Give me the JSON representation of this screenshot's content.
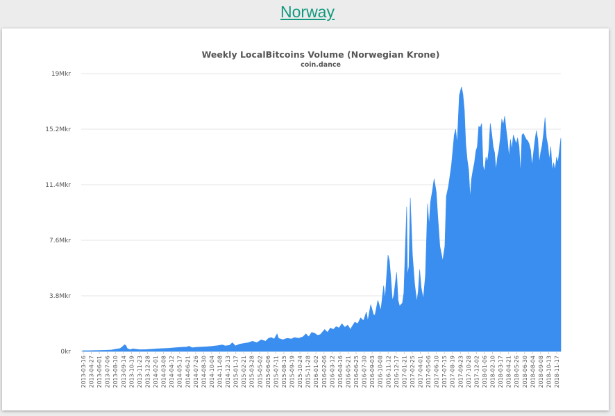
{
  "page": {
    "heading": "Norway"
  },
  "chart_data": {
    "type": "area",
    "title": "Weekly LocalBitcoins Volume (Norwegian Krone)",
    "subtitle": "coin.dance",
    "xlabel": "",
    "ylabel": "",
    "ylim": [
      0,
      19000000
    ],
    "grid": true,
    "legend": "none",
    "color": "#3a8eef",
    "y_tick_labels": [
      "0kr",
      "3.8Mkr",
      "7.6Mkr",
      "11.4Mkr",
      "15.2Mkr",
      "19Mkr"
    ],
    "y_tick_values": [
      0,
      3800000,
      7600000,
      11400000,
      15200000,
      19000000
    ],
    "x_tick_labels": [
      "2013-03-16",
      "2013-04-27",
      "2013-06-01",
      "2013-07-06",
      "2013-08-10",
      "2013-09-14",
      "2013-10-19",
      "2013-11-23",
      "2013-12-28",
      "2014-02-01",
      "2014-03-08",
      "2014-04-12",
      "2014-05-17",
      "2014-06-21",
      "2014-07-26",
      "2014-08-30",
      "2014-10-04",
      "2014-11-08",
      "2014-12-13",
      "2015-01-17",
      "2015-02-21",
      "2015-03-28",
      "2015-05-02",
      "2015-06-06",
      "2015-07-11",
      "2015-08-15",
      "2015-09-19",
      "2015-10-24",
      "2015-11-28",
      "2016-01-02",
      "2016-02-06",
      "2016-03-12",
      "2016-04-16",
      "2016-05-21",
      "2016-06-25",
      "2016-07-30",
      "2016-09-03",
      "2016-10-08",
      "2016-11-12",
      "2016-12-17",
      "2017-01-21",
      "2017-02-25",
      "2017-04-01",
      "2017-05-06",
      "2017-06-10",
      "2017-07-15",
      "2017-08-19",
      "2017-09-23",
      "2017-10-28",
      "2017-12-02",
      "2018-01-06",
      "2018-02-10",
      "2018-03-17",
      "2018-04-21",
      "2018-05-26",
      "2018-06-30",
      "2018-08-04",
      "2018-09-08",
      "2018-10-13",
      "2018-11-17"
    ],
    "series": [
      {
        "values": [
          [
            0,
            0.05
          ],
          [
            8,
            0.05
          ],
          [
            16,
            0.06
          ],
          [
            24,
            0.07
          ],
          [
            32,
            0.08
          ],
          [
            40,
            0.1
          ],
          [
            46,
            0.15
          ],
          [
            52,
            0.2
          ],
          [
            56,
            0.35
          ],
          [
            58,
            0.45
          ],
          [
            60,
            0.42
          ],
          [
            62,
            0.2
          ],
          [
            66,
            0.12
          ],
          [
            70,
            0.18
          ],
          [
            74,
            0.15
          ],
          [
            80,
            0.12
          ],
          [
            88,
            0.13
          ],
          [
            96,
            0.15
          ],
          [
            104,
            0.18
          ],
          [
            112,
            0.2
          ],
          [
            120,
            0.22
          ],
          [
            128,
            0.25
          ],
          [
            136,
            0.28
          ],
          [
            144,
            0.3
          ],
          [
            148,
            0.35
          ],
          [
            152,
            0.25
          ],
          [
            158,
            0.28
          ],
          [
            164,
            0.3
          ],
          [
            172,
            0.32
          ],
          [
            180,
            0.35
          ],
          [
            188,
            0.4
          ],
          [
            194,
            0.45
          ],
          [
            198,
            0.38
          ],
          [
            204,
            0.42
          ],
          [
            208,
            0.6
          ],
          [
            212,
            0.38
          ],
          [
            218,
            0.5
          ],
          [
            224,
            0.55
          ],
          [
            230,
            0.6
          ],
          [
            236,
            0.7
          ],
          [
            242,
            0.6
          ],
          [
            248,
            0.8
          ],
          [
            254,
            0.7
          ],
          [
            258,
            0.9
          ],
          [
            262,
            0.95
          ],
          [
            266,
            0.85
          ],
          [
            270,
            1.2
          ],
          [
            272,
            0.9
          ],
          [
            278,
            0.8
          ],
          [
            284,
            0.9
          ],
          [
            290,
            0.85
          ],
          [
            294,
            0.95
          ],
          [
            300,
            0.9
          ],
          [
            306,
            1.0
          ],
          [
            310,
            1.2
          ],
          [
            314,
            1.0
          ],
          [
            318,
            1.3
          ],
          [
            322,
            1.25
          ],
          [
            326,
            1.1
          ],
          [
            330,
            1.15
          ],
          [
            336,
            1.5
          ],
          [
            340,
            1.3
          ],
          [
            344,
            1.6
          ],
          [
            348,
            1.5
          ],
          [
            352,
            1.7
          ],
          [
            356,
            1.6
          ],
          [
            360,
            1.9
          ],
          [
            364,
            1.65
          ],
          [
            368,
            1.8
          ],
          [
            372,
            1.5
          ],
          [
            374,
            1.7
          ],
          [
            378,
            2.0
          ],
          [
            382,
            1.9
          ],
          [
            386,
            2.3
          ],
          [
            390,
            2.1
          ],
          [
            394,
            2.7
          ],
          [
            396,
            2.1
          ],
          [
            400,
            3.2
          ],
          [
            404,
            2.5
          ],
          [
            406,
            2.5
          ],
          [
            410,
            3.5
          ],
          [
            414,
            2.8
          ],
          [
            418,
            4.5
          ],
          [
            420,
            3.6
          ],
          [
            424,
            6.6
          ],
          [
            426,
            6.2
          ],
          [
            428,
            5.0
          ],
          [
            430,
            3.5
          ],
          [
            432,
            3.8
          ],
          [
            436,
            5.4
          ],
          [
            438,
            3.5
          ],
          [
            440,
            3.1
          ],
          [
            444,
            3.3
          ],
          [
            446,
            4.0
          ],
          [
            450,
            9.9
          ],
          [
            451,
            5.2
          ],
          [
            453,
            5.8
          ],
          [
            455,
            10.5
          ],
          [
            458,
            6.6
          ],
          [
            461,
            4.6
          ],
          [
            464,
            3.4
          ],
          [
            466,
            4.1
          ],
          [
            468,
            5.6
          ],
          [
            470,
            4.4
          ],
          [
            473,
            3.6
          ],
          [
            476,
            5.2
          ],
          [
            479,
            10.1
          ],
          [
            481,
            8.6
          ],
          [
            483,
            10.2
          ],
          [
            486,
            11.1
          ],
          [
            488,
            11.8
          ],
          [
            491,
            10.9
          ],
          [
            493,
            9.3
          ],
          [
            496,
            7.2
          ],
          [
            500,
            6.2
          ],
          [
            503,
            7.2
          ],
          [
            505,
            10.6
          ],
          [
            508,
            11.3
          ],
          [
            512,
            12.7
          ],
          [
            516,
            14.8
          ],
          [
            518,
            15.2
          ],
          [
            520,
            14.2
          ],
          [
            523,
            17.5
          ],
          [
            526,
            18.1
          ],
          [
            528,
            17.6
          ],
          [
            530,
            16.5
          ],
          [
            532,
            14.2
          ],
          [
            534,
            13.1
          ],
          [
            536,
            12.4
          ],
          [
            538,
            10.5
          ],
          [
            540,
            11.8
          ],
          [
            542,
            12.4
          ],
          [
            544,
            12.9
          ],
          [
            546,
            13.7
          ],
          [
            548,
            14.0
          ],
          [
            550,
            15.4
          ],
          [
            552,
            15.3
          ],
          [
            554,
            15.6
          ],
          [
            556,
            12.7
          ],
          [
            558,
            12.3
          ],
          [
            560,
            13.3
          ],
          [
            562,
            13.0
          ],
          [
            564,
            13.8
          ],
          [
            566,
            15.6
          ],
          [
            568,
            14.9
          ],
          [
            570,
            14.0
          ],
          [
            572,
            13.6
          ],
          [
            574,
            12.4
          ],
          [
            576,
            13.3
          ],
          [
            578,
            13.8
          ],
          [
            580,
            14.6
          ],
          [
            582,
            15.9
          ],
          [
            584,
            15.5
          ],
          [
            586,
            16.1
          ],
          [
            588,
            15.2
          ],
          [
            590,
            14.4
          ],
          [
            592,
            13.3
          ],
          [
            594,
            14.5
          ],
          [
            596,
            13.8
          ],
          [
            598,
            14.8
          ],
          [
            600,
            14.5
          ],
          [
            602,
            14.2
          ],
          [
            604,
            14.6
          ],
          [
            606,
            14.0
          ],
          [
            608,
            12.2
          ],
          [
            610,
            14.8
          ],
          [
            612,
            14.9
          ],
          [
            614,
            14.7
          ],
          [
            616,
            14.5
          ],
          [
            618,
            14.4
          ],
          [
            620,
            14.2
          ],
          [
            622,
            13.8
          ],
          [
            624,
            12.7
          ],
          [
            626,
            13.6
          ],
          [
            628,
            14.4
          ],
          [
            630,
            15.1
          ],
          [
            632,
            14.5
          ],
          [
            634,
            12.9
          ],
          [
            636,
            13.6
          ],
          [
            638,
            14.1
          ],
          [
            640,
            14.9
          ],
          [
            642,
            16.0
          ],
          [
            644,
            14.6
          ],
          [
            646,
            14.1
          ],
          [
            648,
            13.1
          ],
          [
            650,
            14.0
          ],
          [
            652,
            12.4
          ],
          [
            654,
            12.9
          ],
          [
            656,
            12.4
          ],
          [
            658,
            13.3
          ],
          [
            660,
            12.9
          ],
          [
            664,
            14.6
          ]
        ]
      }
    ]
  }
}
